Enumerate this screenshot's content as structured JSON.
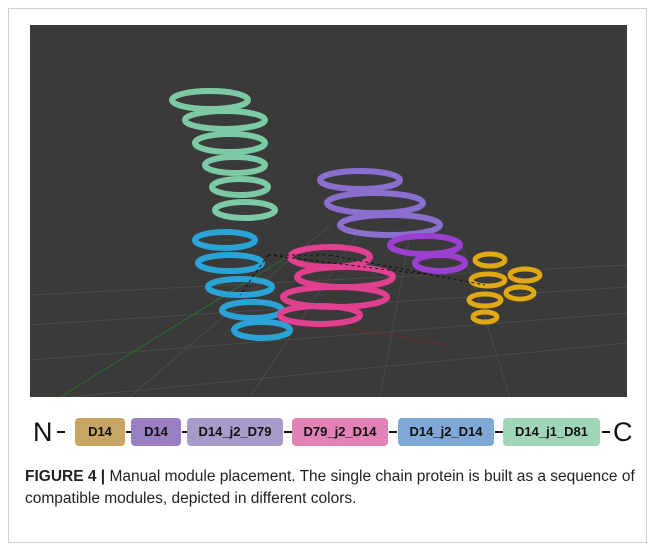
{
  "figure": {
    "chain": {
      "start": "N",
      "end": "C",
      "modules": [
        "D14",
        "D14",
        "D14_j2_D79",
        "D79_j2_D14",
        "D14_j2_D14",
        "D14_j1_D81"
      ]
    },
    "caption": {
      "label": "FIGURE 4 |",
      "text": "Manual module placement. The single chain protein is built as a sequence of compatible modules, depicted in different colors."
    }
  }
}
